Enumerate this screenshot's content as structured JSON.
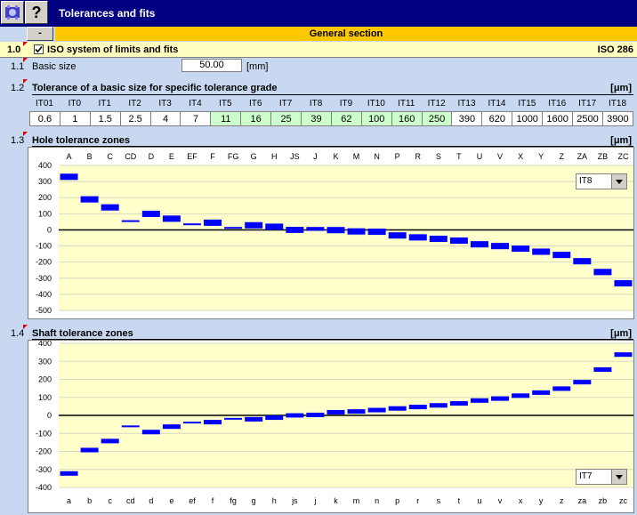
{
  "window": {
    "title": "Tolerances and fits"
  },
  "section": {
    "collapse_label": "-",
    "title": "General section"
  },
  "row_1_0": {
    "num": "1.0",
    "title": "ISO system of limits and fits",
    "standard": "ISO 286",
    "checked": true
  },
  "row_1_1": {
    "num": "1.1",
    "label": "Basic size",
    "value": "50.00",
    "unit": "[mm]"
  },
  "row_1_2": {
    "num": "1.2",
    "title": "Tolerance of a basic size for specific tolerance grade",
    "unit": "[μm]",
    "grades": [
      "IT01",
      "IT0",
      "IT1",
      "IT2",
      "IT3",
      "IT4",
      "IT5",
      "IT6",
      "IT7",
      "IT8",
      "IT9",
      "IT10",
      "IT11",
      "IT12",
      "IT13",
      "IT14",
      "IT15",
      "IT16",
      "IT17",
      "IT18"
    ],
    "values": [
      "0.6",
      "1",
      "1.5",
      "2.5",
      "4",
      "7",
      "11",
      "16",
      "25",
      "39",
      "62",
      "100",
      "160",
      "250",
      "390",
      "620",
      "1000",
      "1600",
      "2500",
      "3900"
    ],
    "highlight_color": "#ccffcc"
  },
  "row_1_3": {
    "num": "1.3",
    "title": "Hole tolerance zones",
    "unit": "[μm]",
    "grade_select": "IT8"
  },
  "row_1_4": {
    "num": "1.4",
    "title": "Shaft tolerance zones",
    "unit": "[μm]",
    "grade_select": "IT7"
  },
  "colors": {
    "plot_bg": "#ffffcc",
    "bar": "#0000ff"
  },
  "chart_data": [
    {
      "type": "bar",
      "title": "Hole tolerance zones",
      "categories": [
        "A",
        "B",
        "C",
        "CD",
        "D",
        "E",
        "EF",
        "F",
        "FG",
        "G",
        "H",
        "JS",
        "J",
        "K",
        "M",
        "N",
        "P",
        "R",
        "S",
        "T",
        "U",
        "V",
        "X",
        "Y",
        "Z",
        "ZA",
        "ZB",
        "ZC"
      ],
      "lower": [
        310,
        170,
        120,
        56,
        80,
        50,
        35,
        25,
        14,
        9,
        0,
        -19,
        -6,
        -21,
        -29,
        -31,
        -54,
        -66,
        -75,
        -86,
        -109,
        -120,
        -136,
        -155,
        -175,
        -214,
        -281,
        -351
      ],
      "upper": [
        349,
        209,
        159,
        60,
        119,
        89,
        40,
        64,
        18,
        48,
        39,
        19,
        18,
        18,
        10,
        8,
        -15,
        -27,
        -36,
        -47,
        -70,
        -81,
        -97,
        -116,
        -136,
        -175,
        -242,
        -312
      ],
      "ylim": [
        -500,
        400
      ],
      "yticks": [
        400,
        300,
        200,
        100,
        0,
        -100,
        -200,
        -300,
        -400,
        -500
      ],
      "grid": true
    },
    {
      "type": "bar",
      "title": "Shaft tolerance zones",
      "categories": [
        "a",
        "b",
        "c",
        "cd",
        "d",
        "e",
        "ef",
        "f",
        "fg",
        "g",
        "h",
        "js",
        "j",
        "k",
        "m",
        "n",
        "p",
        "r",
        "s",
        "t",
        "u",
        "v",
        "x",
        "y",
        "z",
        "za",
        "zb",
        "zc"
      ],
      "lower": [
        -335,
        -205,
        -155,
        -58,
        -105,
        -75,
        -37,
        -50,
        -16,
        -34,
        -25,
        -12,
        -10,
        5,
        9,
        17,
        26,
        34,
        43,
        54,
        70,
        81,
        97,
        114,
        136,
        172,
        242,
        325
      ],
      "upper": [
        -310,
        -180,
        -130,
        -56,
        -80,
        -50,
        -35,
        -25,
        -14,
        -9,
        0,
        12,
        15,
        30,
        34,
        42,
        51,
        59,
        68,
        79,
        95,
        106,
        122,
        139,
        161,
        197,
        267,
        350
      ],
      "ylim": [
        -400,
        400
      ],
      "yticks": [
        400,
        300,
        200,
        100,
        0,
        -100,
        -200,
        -300,
        -400
      ],
      "grid": true
    }
  ]
}
